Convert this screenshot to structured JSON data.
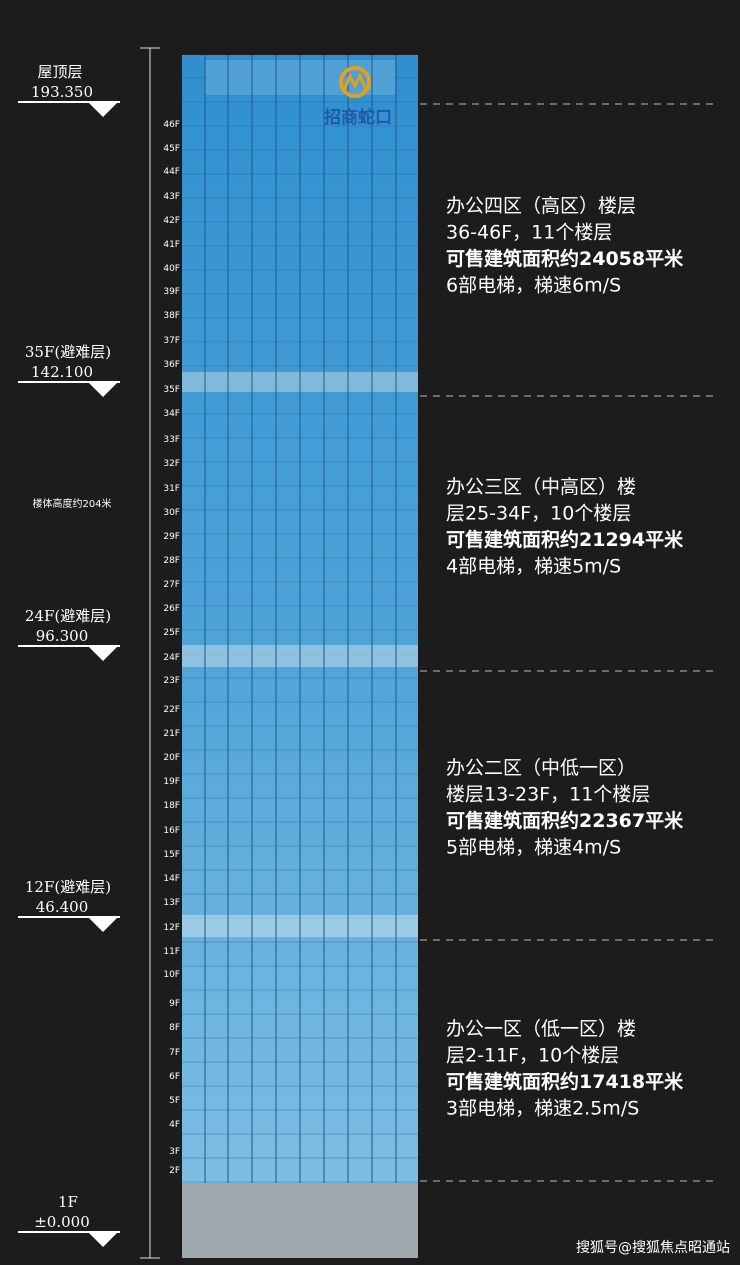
{
  "markers": [
    {
      "label": "屋顶层",
      "elevation": "193.350"
    },
    {
      "label": "35F(避难层)",
      "elevation": "142.100"
    },
    {
      "label": "24F(避难层)",
      "elevation": "96.300"
    },
    {
      "label": "12F(避难层)",
      "elevation": "46.400"
    },
    {
      "label": "1F",
      "elevation": "±0.000"
    }
  ],
  "floor_labels": [
    "46F",
    "45F",
    "44F",
    "43F",
    "42F",
    "41F",
    "40F",
    "39F",
    "38F",
    "37F",
    "36F",
    "35F",
    "34F",
    "33F",
    "32F",
    "31F",
    "30F",
    "29F",
    "28F",
    "27F",
    "26F",
    "25F",
    "24F",
    "23F",
    "22F",
    "21F",
    "20F",
    "19F",
    "18F",
    "16F",
    "15F",
    "14F",
    "13F",
    "12F",
    "11F",
    "10F",
    "9F",
    "8F",
    "7F",
    "6F",
    "5F",
    "4F",
    "3F",
    "2F"
  ],
  "height_note": "楼体高度约204米",
  "logo_text": "招商蛇口",
  "zones": [
    {
      "lines": [
        "办公四区（高区）楼层",
        "36-46F，11个楼层",
        "可售建筑面积约24058平米",
        "6部电梯，梯速6m/S"
      ]
    },
    {
      "lines": [
        "办公三区（中高区）楼",
        "层25-34F，10个楼层",
        "可售建筑面积约21294平米",
        "4部电梯，梯速5m/S"
      ]
    },
    {
      "lines": [
        "办公二区（中低一区）",
        "楼层13-23F，11个楼层",
        "可售建筑面积约22367平米",
        "5部电梯，梯速4m/S"
      ]
    },
    {
      "lines": [
        "办公一区（低一区）楼",
        "层2-11F，10个楼层",
        "可售建筑面积约17418平米",
        "3部电梯，梯速2.5m/S"
      ]
    }
  ],
  "watermark": "搜狐号@搜狐焦点昭通站"
}
